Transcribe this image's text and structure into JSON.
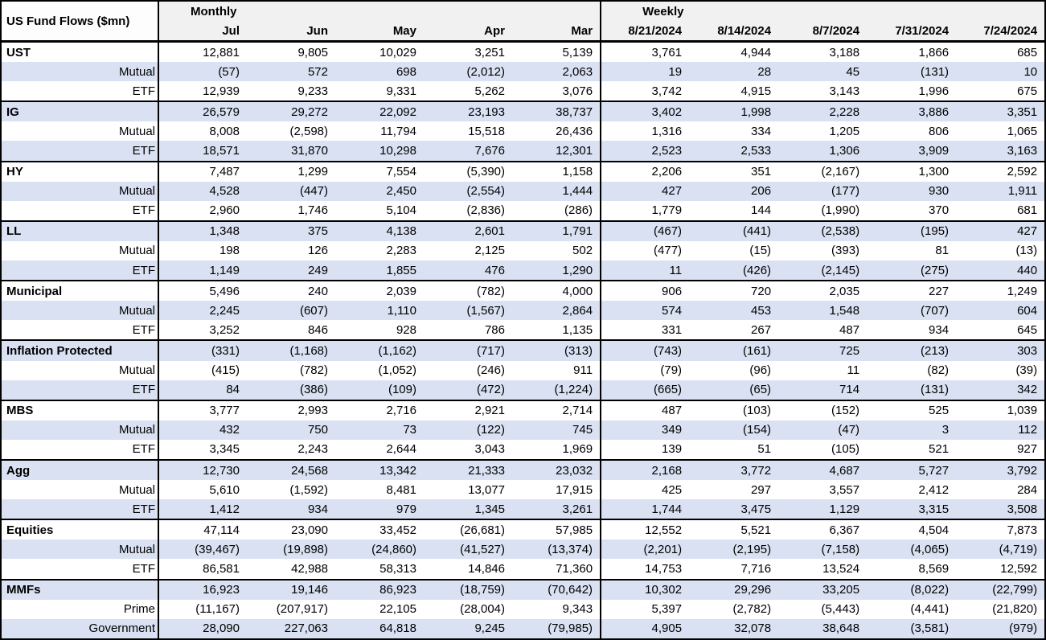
{
  "title": "US Fund Flows ($mn)",
  "blocks": {
    "monthly_label": "Monthly",
    "weekly_label": "Weekly"
  },
  "columns": {
    "monthly": [
      "Jul",
      "Jun",
      "May",
      "Apr",
      "Mar"
    ],
    "weekly": [
      "8/21/2024",
      "8/14/2024",
      "8/7/2024",
      "7/31/2024",
      "7/24/2024"
    ]
  },
  "colors": {
    "row_shade": "#d9e1f2",
    "header_bg": "#f1f1f1",
    "border": "#000000"
  },
  "rows": [
    {
      "label": "UST",
      "type": "category",
      "monthly": [
        "12,881",
        "9,805",
        "10,029",
        "3,251",
        "5,139"
      ],
      "weekly": [
        "3,761",
        "4,944",
        "3,188",
        "1,866",
        "685"
      ]
    },
    {
      "label": "Mutual",
      "type": "sub",
      "monthly": [
        "(57)",
        "572",
        "698",
        "(2,012)",
        "2,063"
      ],
      "weekly": [
        "19",
        "28",
        "45",
        "(131)",
        "10"
      ]
    },
    {
      "label": "ETF",
      "type": "sub",
      "monthly": [
        "12,939",
        "9,233",
        "9,331",
        "5,262",
        "3,076"
      ],
      "weekly": [
        "3,742",
        "4,915",
        "3,143",
        "1,996",
        "675"
      ]
    },
    {
      "label": "IG",
      "type": "category",
      "monthly": [
        "26,579",
        "29,272",
        "22,092",
        "23,193",
        "38,737"
      ],
      "weekly": [
        "3,402",
        "1,998",
        "2,228",
        "3,886",
        "3,351"
      ]
    },
    {
      "label": "Mutual",
      "type": "sub",
      "monthly": [
        "8,008",
        "(2,598)",
        "11,794",
        "15,518",
        "26,436"
      ],
      "weekly": [
        "1,316",
        "334",
        "1,205",
        "806",
        "1,065"
      ]
    },
    {
      "label": "ETF",
      "type": "sub",
      "monthly": [
        "18,571",
        "31,870",
        "10,298",
        "7,676",
        "12,301"
      ],
      "weekly": [
        "2,523",
        "2,533",
        "1,306",
        "3,909",
        "3,163"
      ]
    },
    {
      "label": "HY",
      "type": "category",
      "monthly": [
        "7,487",
        "1,299",
        "7,554",
        "(5,390)",
        "1,158"
      ],
      "weekly": [
        "2,206",
        "351",
        "(2,167)",
        "1,300",
        "2,592"
      ]
    },
    {
      "label": "Mutual",
      "type": "sub",
      "monthly": [
        "4,528",
        "(447)",
        "2,450",
        "(2,554)",
        "1,444"
      ],
      "weekly": [
        "427",
        "206",
        "(177)",
        "930",
        "1,911"
      ]
    },
    {
      "label": "ETF",
      "type": "sub",
      "monthly": [
        "2,960",
        "1,746",
        "5,104",
        "(2,836)",
        "(286)"
      ],
      "weekly": [
        "1,779",
        "144",
        "(1,990)",
        "370",
        "681"
      ]
    },
    {
      "label": "LL",
      "type": "category",
      "monthly": [
        "1,348",
        "375",
        "4,138",
        "2,601",
        "1,791"
      ],
      "weekly": [
        "(467)",
        "(441)",
        "(2,538)",
        "(195)",
        "427"
      ]
    },
    {
      "label": "Mutual",
      "type": "sub",
      "monthly": [
        "198",
        "126",
        "2,283",
        "2,125",
        "502"
      ],
      "weekly": [
        "(477)",
        "(15)",
        "(393)",
        "81",
        "(13)"
      ]
    },
    {
      "label": "ETF",
      "type": "sub",
      "monthly": [
        "1,149",
        "249",
        "1,855",
        "476",
        "1,290"
      ],
      "weekly": [
        "11",
        "(426)",
        "(2,145)",
        "(275)",
        "440"
      ]
    },
    {
      "label": "Municipal",
      "type": "category",
      "monthly": [
        "5,496",
        "240",
        "2,039",
        "(782)",
        "4,000"
      ],
      "weekly": [
        "906",
        "720",
        "2,035",
        "227",
        "1,249"
      ]
    },
    {
      "label": "Mutual",
      "type": "sub",
      "monthly": [
        "2,245",
        "(607)",
        "1,110",
        "(1,567)",
        "2,864"
      ],
      "weekly": [
        "574",
        "453",
        "1,548",
        "(707)",
        "604"
      ]
    },
    {
      "label": "ETF",
      "type": "sub",
      "monthly": [
        "3,252",
        "846",
        "928",
        "786",
        "1,135"
      ],
      "weekly": [
        "331",
        "267",
        "487",
        "934",
        "645"
      ]
    },
    {
      "label": "Inflation Protected",
      "type": "category",
      "monthly": [
        "(331)",
        "(1,168)",
        "(1,162)",
        "(717)",
        "(313)"
      ],
      "weekly": [
        "(743)",
        "(161)",
        "725",
        "(213)",
        "303"
      ]
    },
    {
      "label": "Mutual",
      "type": "sub",
      "monthly": [
        "(415)",
        "(782)",
        "(1,052)",
        "(246)",
        "911"
      ],
      "weekly": [
        "(79)",
        "(96)",
        "11",
        "(82)",
        "(39)"
      ]
    },
    {
      "label": "ETF",
      "type": "sub",
      "monthly": [
        "84",
        "(386)",
        "(109)",
        "(472)",
        "(1,224)"
      ],
      "weekly": [
        "(665)",
        "(65)",
        "714",
        "(131)",
        "342"
      ]
    },
    {
      "label": "MBS",
      "type": "category",
      "monthly": [
        "3,777",
        "2,993",
        "2,716",
        "2,921",
        "2,714"
      ],
      "weekly": [
        "487",
        "(103)",
        "(152)",
        "525",
        "1,039"
      ]
    },
    {
      "label": "Mutual",
      "type": "sub",
      "monthly": [
        "432",
        "750",
        "73",
        "(122)",
        "745"
      ],
      "weekly": [
        "349",
        "(154)",
        "(47)",
        "3",
        "112"
      ]
    },
    {
      "label": "ETF",
      "type": "sub",
      "monthly": [
        "3,345",
        "2,243",
        "2,644",
        "3,043",
        "1,969"
      ],
      "weekly": [
        "139",
        "51",
        "(105)",
        "521",
        "927"
      ]
    },
    {
      "label": "Agg",
      "type": "category",
      "monthly": [
        "12,730",
        "24,568",
        "13,342",
        "21,333",
        "23,032"
      ],
      "weekly": [
        "2,168",
        "3,772",
        "4,687",
        "5,727",
        "3,792"
      ]
    },
    {
      "label": "Mutual",
      "type": "sub",
      "monthly": [
        "5,610",
        "(1,592)",
        "8,481",
        "13,077",
        "17,915"
      ],
      "weekly": [
        "425",
        "297",
        "3,557",
        "2,412",
        "284"
      ]
    },
    {
      "label": "ETF",
      "type": "sub",
      "monthly": [
        "1,412",
        "934",
        "979",
        "1,345",
        "3,261"
      ],
      "weekly": [
        "1,744",
        "3,475",
        "1,129",
        "3,315",
        "3,508"
      ]
    },
    {
      "label": "Equities",
      "type": "category",
      "monthly": [
        "47,114",
        "23,090",
        "33,452",
        "(26,681)",
        "57,985"
      ],
      "weekly": [
        "12,552",
        "5,521",
        "6,367",
        "4,504",
        "7,873"
      ]
    },
    {
      "label": "Mutual",
      "type": "sub",
      "monthly": [
        "(39,467)",
        "(19,898)",
        "(24,860)",
        "(41,527)",
        "(13,374)"
      ],
      "weekly": [
        "(2,201)",
        "(2,195)",
        "(7,158)",
        "(4,065)",
        "(4,719)"
      ]
    },
    {
      "label": "ETF",
      "type": "sub",
      "monthly": [
        "86,581",
        "42,988",
        "58,313",
        "14,846",
        "71,360"
      ],
      "weekly": [
        "14,753",
        "7,716",
        "13,524",
        "8,569",
        "12,592"
      ]
    },
    {
      "label": "MMFs",
      "type": "category",
      "monthly": [
        "16,923",
        "19,146",
        "86,923",
        "(18,759)",
        "(70,642)"
      ],
      "weekly": [
        "10,302",
        "29,296",
        "33,205",
        "(8,022)",
        "(22,799)"
      ]
    },
    {
      "label": "Prime",
      "type": "sub",
      "monthly": [
        "(11,167)",
        "(207,917)",
        "22,105",
        "(28,004)",
        "9,343"
      ],
      "weekly": [
        "5,397",
        "(2,782)",
        "(5,443)",
        "(4,441)",
        "(21,820)"
      ]
    },
    {
      "label": "Government",
      "type": "sub",
      "monthly": [
        "28,090",
        "227,063",
        "64,818",
        "9,245",
        "(79,985)"
      ],
      "weekly": [
        "4,905",
        "32,078",
        "38,648",
        "(3,581)",
        "(979)"
      ]
    }
  ]
}
